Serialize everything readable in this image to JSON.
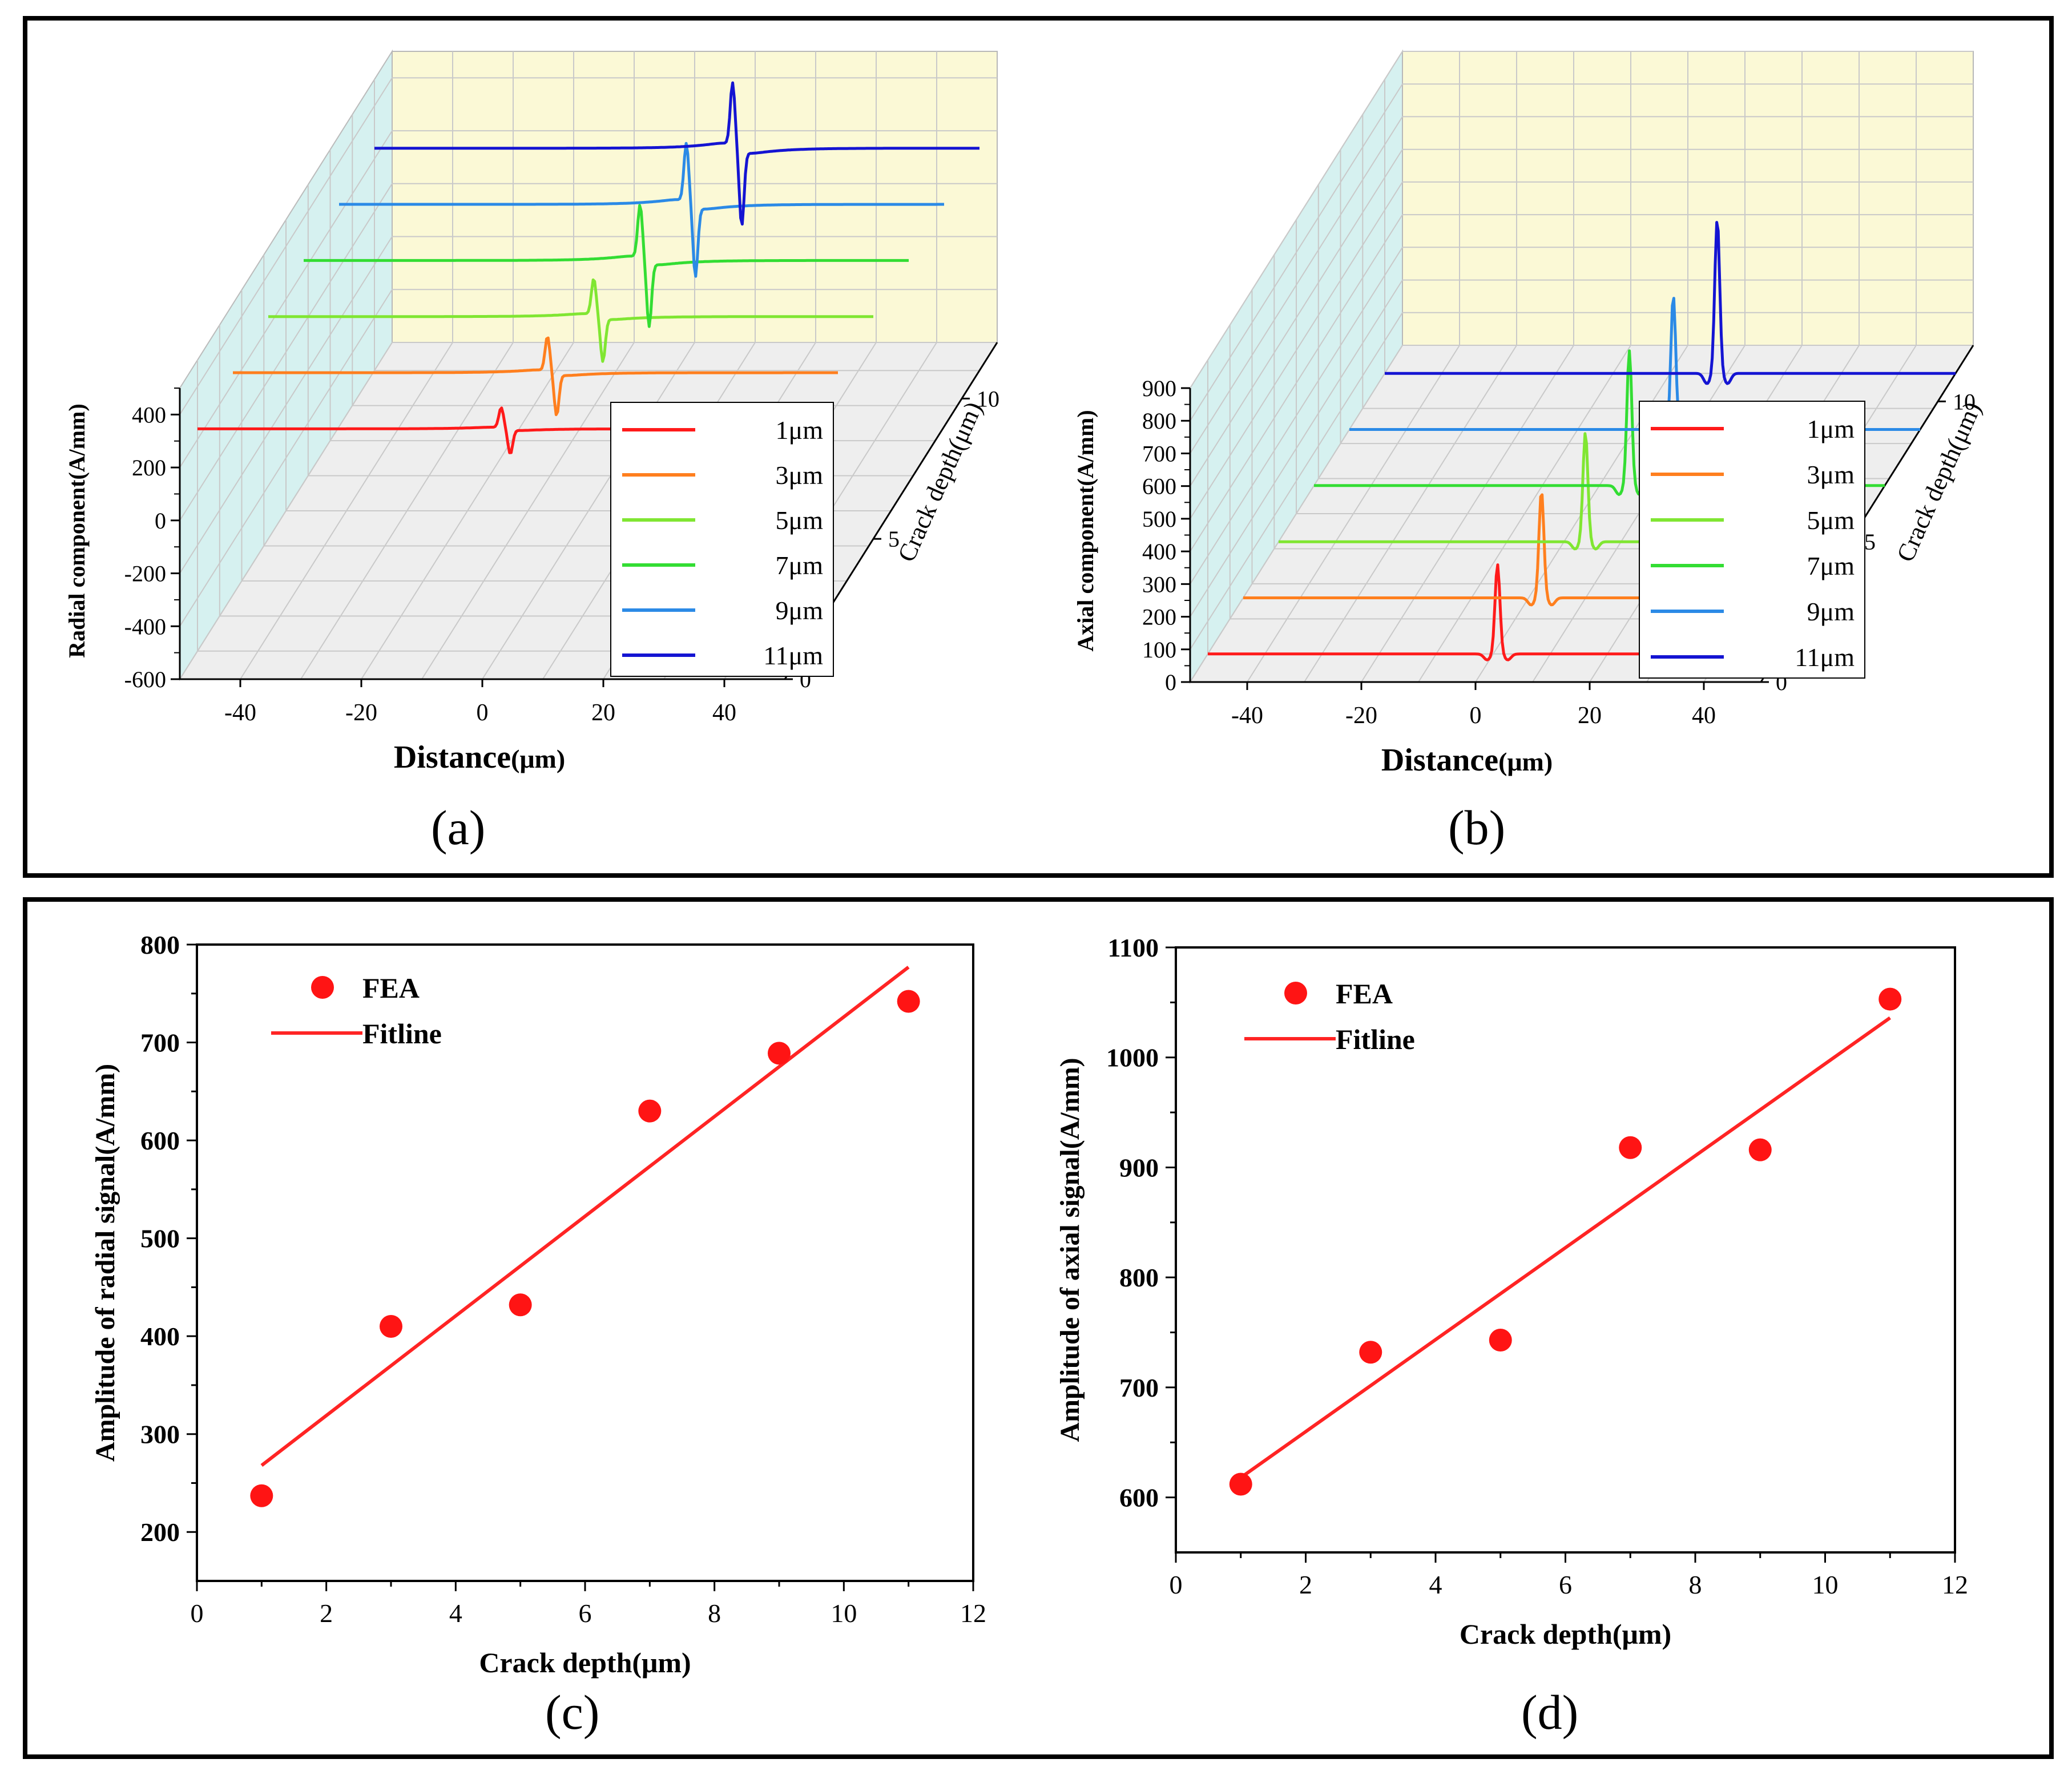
{
  "colors": {
    "c1": "#ff1a1a",
    "c3": "#ff7f1e",
    "c5": "#80e632",
    "c7": "#33dd33",
    "c9": "#2b8ae6",
    "c11": "#1414d2",
    "back_wall": "#fbf9d6",
    "side_wall": "#d6f1f0",
    "floor": "#eeeeee",
    "fea": "#ff1414",
    "fit": "#ff2424"
  },
  "captions": {
    "a": "(a)",
    "b": "(b)",
    "c": "(c)",
    "d": "(d)"
  },
  "chart_data": [
    {
      "id": "a",
      "type": "line",
      "projection": "3d-waterfall",
      "title": "",
      "xlabel_main": "Distance",
      "xlabel_unit": "(μm)",
      "ylabel": "Radial component(A/mm)",
      "zlabel": "Crack depth(μm)",
      "xlim": [
        -50,
        50
      ],
      "ylim": [
        -600,
        500
      ],
      "zlim": [
        0,
        12
      ],
      "x_ticks": [
        "-40",
        "-20",
        "0",
        "20",
        "40"
      ],
      "y_ticks": [
        "400",
        "200",
        "0",
        "-200",
        "-400",
        "-600"
      ],
      "z_ticks": [
        "0",
        "5",
        "10"
      ],
      "legend_position": "right",
      "series": [
        {
          "name": "1μm",
          "depth": 1,
          "amplitude": 240
        },
        {
          "name": "3μm",
          "depth": 3,
          "amplitude": 410
        },
        {
          "name": "5μm",
          "depth": 5,
          "amplitude": 430
        },
        {
          "name": "7μm",
          "depth": 7,
          "amplitude": 630
        },
        {
          "name": "9μm",
          "depth": 9,
          "amplitude": 690
        },
        {
          "name": "11μm",
          "depth": 11,
          "amplitude": 740
        }
      ]
    },
    {
      "id": "b",
      "type": "line",
      "projection": "3d-waterfall",
      "title": "",
      "xlabel_main": "Distance",
      "xlabel_unit": "(μm)",
      "ylabel": "Axial component(A/mm)",
      "zlabel": "Crack depth(μm)",
      "xlim": [
        -50,
        50
      ],
      "ylim": [
        0,
        900
      ],
      "zlim": [
        0,
        12
      ],
      "x_ticks": [
        "-40",
        "-20",
        "0",
        "20",
        "40"
      ],
      "y_ticks": [
        "900",
        "800",
        "700",
        "600",
        "500",
        "400",
        "300",
        "200",
        "100",
        "0"
      ],
      "z_ticks": [
        "0",
        "5",
        "10"
      ],
      "legend_position": "right",
      "series": [
        {
          "name": "1μm",
          "depth": 1,
          "amplitude": 610
        },
        {
          "name": "3μm",
          "depth": 3,
          "amplitude": 730
        },
        {
          "name": "5μm",
          "depth": 5,
          "amplitude": 745
        },
        {
          "name": "7μm",
          "depth": 7,
          "amplitude": 918
        },
        {
          "name": "9μm",
          "depth": 9,
          "amplitude": 915
        },
        {
          "name": "11μm",
          "depth": 11,
          "amplitude": 1053
        }
      ]
    },
    {
      "id": "c",
      "type": "scatter",
      "title": "",
      "xlabel": "Crack depth(μm)",
      "ylabel": "Amplitude of radial signal(A/mm)",
      "xlim": [
        0,
        12
      ],
      "ylim": [
        150,
        800
      ],
      "x_ticks": [
        "0",
        "2",
        "4",
        "6",
        "8",
        "10",
        "12"
      ],
      "y_ticks": [
        "200",
        "300",
        "400",
        "500",
        "600",
        "700",
        "800"
      ],
      "legend_position": "top-left",
      "series": [
        {
          "name": "FEA",
          "x": [
            1,
            3,
            5,
            7,
            9,
            11
          ],
          "y": [
            237,
            410,
            432,
            630,
            689,
            742
          ]
        },
        {
          "name": "Fitline",
          "x": [
            1,
            11
          ],
          "y": [
            268,
            777
          ]
        }
      ]
    },
    {
      "id": "d",
      "type": "scatter",
      "title": "",
      "xlabel": "Crack depth(μm)",
      "ylabel": "Amplitude of axial signal(A/mm)",
      "xlim": [
        0,
        12
      ],
      "ylim": [
        550,
        1100
      ],
      "x_ticks": [
        "0",
        "2",
        "4",
        "6",
        "8",
        "10",
        "12"
      ],
      "y_ticks": [
        "600",
        "700",
        "800",
        "900",
        "1000",
        "1100"
      ],
      "legend_position": "top-left",
      "series": [
        {
          "name": "FEA",
          "x": [
            1,
            3,
            5,
            7,
            9,
            11
          ],
          "y": [
            612,
            732,
            743,
            918,
            916,
            1053
          ]
        },
        {
          "name": "Fitline",
          "x": [
            1,
            11
          ],
          "y": [
            618,
            1036
          ]
        }
      ]
    }
  ]
}
